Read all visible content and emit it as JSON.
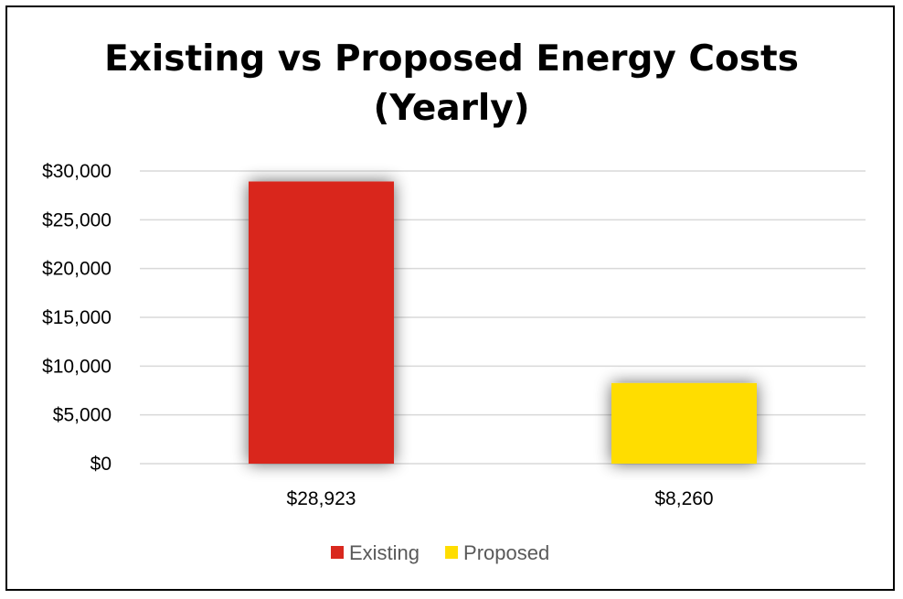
{
  "chart_data": {
    "type": "bar",
    "title_lines": [
      "Existing vs Proposed Energy Costs",
      "(Yearly)"
    ],
    "categories": [
      "$28,923",
      "$8,260"
    ],
    "series": [
      {
        "name": "Existing",
        "values": [
          28923,
          null
        ],
        "color": "#D9281E"
      },
      {
        "name": "Proposed",
        "values": [
          null,
          8260
        ],
        "color": "#FFDD00"
      }
    ],
    "ylim": [
      0,
      30000
    ],
    "yticks": [
      0,
      5000,
      10000,
      15000,
      20000,
      25000,
      30000
    ],
    "ytick_labels": [
      "$0",
      "$5,000",
      "$10,000",
      "$15,000",
      "$20,000",
      "$25,000",
      "$30,000"
    ],
    "grid": true,
    "legend_position": "bottom",
    "xlabel": "",
    "ylabel": ""
  }
}
